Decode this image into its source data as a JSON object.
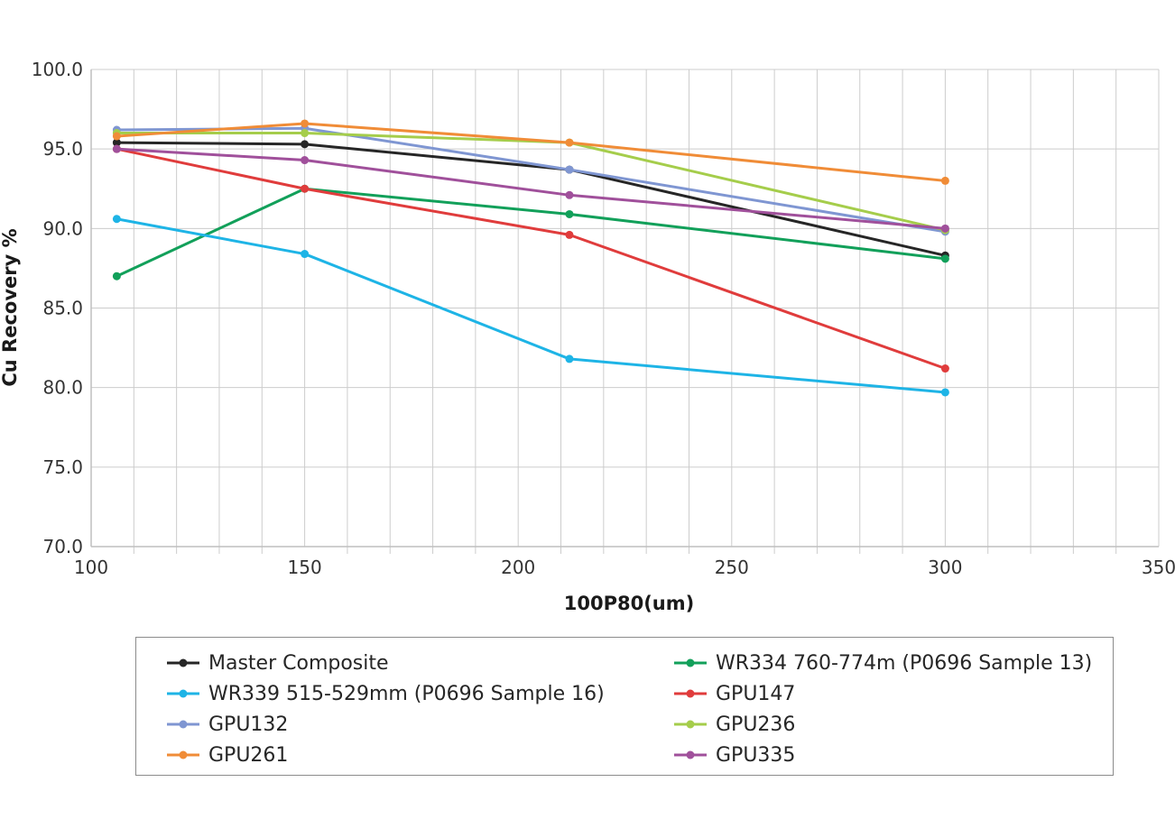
{
  "chart_data": {
    "type": "line",
    "xlabel": "100P80(um)",
    "ylabel": "Cu Recovery %",
    "xlim": [
      100,
      350
    ],
    "ylim": [
      70,
      100
    ],
    "x_ticks": [
      "100",
      "150",
      "200",
      "250",
      "300",
      "350"
    ],
    "y_ticks": [
      "70.0",
      "75.0",
      "80.0",
      "85.0",
      "90.0",
      "95.0",
      "100.0"
    ],
    "grid": true,
    "legend_position": "bottom",
    "series": [
      {
        "name": "Master Composite",
        "color": "#262626",
        "x": [
          106,
          150,
          212,
          300
        ],
        "y": [
          95.4,
          95.3,
          93.7,
          88.3
        ]
      },
      {
        "name": "WR334 760-774m (P0696 Sample 13)",
        "color": "#12a05a",
        "x": [
          106,
          150,
          212,
          300
        ],
        "y": [
          87.0,
          92.5,
          90.9,
          88.1
        ]
      },
      {
        "name": "WR339 515-529mm (P0696 Sample 16)",
        "color": "#1eb4e6",
        "x": [
          106,
          150,
          212,
          300
        ],
        "y": [
          90.6,
          88.4,
          81.8,
          79.7
        ]
      },
      {
        "name": "GPU147",
        "color": "#e03c3c",
        "x": [
          106,
          150,
          212,
          300
        ],
        "y": [
          95.0,
          92.5,
          89.6,
          81.2
        ]
      },
      {
        "name": "GPU132",
        "color": "#7f96d2",
        "x": [
          106,
          150,
          212,
          300
        ],
        "y": [
          96.2,
          96.3,
          93.7,
          89.8
        ]
      },
      {
        "name": "GPU236",
        "color": "#a5cd4b",
        "x": [
          106,
          150,
          212,
          300
        ],
        "y": [
          96.0,
          96.0,
          95.4,
          89.9
        ]
      },
      {
        "name": "GPU261",
        "color": "#f08c37",
        "x": [
          106,
          150,
          212,
          300
        ],
        "y": [
          95.8,
          96.6,
          95.4,
          93.0
        ]
      },
      {
        "name": "GPU335",
        "color": "#a0509b",
        "x": [
          106,
          150,
          212,
          300
        ],
        "y": [
          95.0,
          94.3,
          92.1,
          90.0
        ]
      }
    ]
  }
}
